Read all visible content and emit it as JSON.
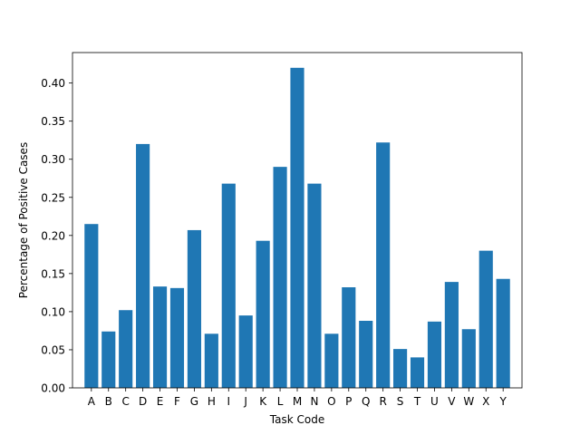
{
  "chart_data": {
    "type": "bar",
    "title": "",
    "xlabel": "Task Code",
    "ylabel": "Percentage of Positive Cases",
    "categories": [
      "A",
      "B",
      "C",
      "D",
      "E",
      "F",
      "G",
      "H",
      "I",
      "J",
      "K",
      "L",
      "M",
      "N",
      "O",
      "P",
      "Q",
      "R",
      "S",
      "T",
      "U",
      "V",
      "W",
      "X",
      "Y"
    ],
    "values": [
      0.215,
      0.074,
      0.102,
      0.32,
      0.133,
      0.131,
      0.207,
      0.071,
      0.268,
      0.095,
      0.193,
      0.29,
      0.42,
      0.268,
      0.071,
      0.132,
      0.088,
      0.322,
      0.051,
      0.04,
      0.087,
      0.139,
      0.077,
      0.18,
      0.143
    ],
    "yticks": [
      "0.00",
      "0.05",
      "0.10",
      "0.15",
      "0.20",
      "0.25",
      "0.30",
      "0.35",
      "0.40"
    ],
    "ylim": [
      0,
      0.44
    ],
    "bar_color": "#1f77b4",
    "grid": false
  }
}
